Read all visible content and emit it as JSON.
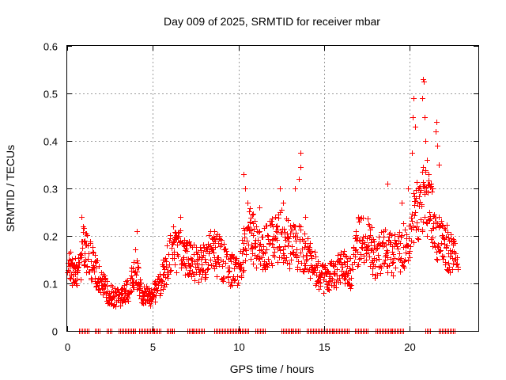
{
  "chart_data": {
    "type": "scatter",
    "title": "Day 009 of 2025, SRMTID for receiver mbar",
    "xlabel": "GPS time / hours",
    "ylabel": "SRMTID / TECUs",
    "xlim": [
      0,
      24
    ],
    "ylim": [
      0,
      0.6
    ],
    "xticks": [
      0,
      5,
      10,
      15,
      20
    ],
    "xtick_labels": [
      "0",
      "5",
      "10",
      "15",
      "20"
    ],
    "yticks": [
      0,
      0.1,
      0.2,
      0.3,
      0.4,
      0.5,
      0.6
    ],
    "ytick_labels": [
      "0",
      "0.1",
      "0.2",
      "0.3",
      "0.4",
      "0.5",
      "0.6"
    ],
    "grid": true,
    "marker": "+",
    "series": [
      {
        "name": "SRMTID",
        "color": "#ff0000",
        "trend": [
          [
            0.0,
            0.14
          ],
          [
            0.4,
            0.12
          ],
          [
            0.8,
            0.15
          ],
          [
            1.0,
            0.18
          ],
          [
            1.3,
            0.15
          ],
          [
            1.7,
            0.12
          ],
          [
            2.0,
            0.1
          ],
          [
            2.4,
            0.08
          ],
          [
            2.8,
            0.07
          ],
          [
            3.2,
            0.07
          ],
          [
            3.6,
            0.09
          ],
          [
            4.0,
            0.14
          ],
          [
            4.3,
            0.08
          ],
          [
            4.8,
            0.07
          ],
          [
            5.2,
            0.09
          ],
          [
            5.6,
            0.12
          ],
          [
            6.0,
            0.16
          ],
          [
            6.5,
            0.17
          ],
          [
            7.0,
            0.15
          ],
          [
            7.5,
            0.14
          ],
          [
            8.0,
            0.15
          ],
          [
            8.5,
            0.17
          ],
          [
            9.0,
            0.15
          ],
          [
            9.5,
            0.13
          ],
          [
            10.0,
            0.12
          ],
          [
            10.3,
            0.17
          ],
          [
            10.6,
            0.22
          ],
          [
            11.0,
            0.18
          ],
          [
            11.5,
            0.17
          ],
          [
            12.0,
            0.19
          ],
          [
            12.5,
            0.2
          ],
          [
            13.0,
            0.18
          ],
          [
            13.5,
            0.18
          ],
          [
            14.0,
            0.16
          ],
          [
            14.5,
            0.13
          ],
          [
            15.0,
            0.11
          ],
          [
            15.5,
            0.12
          ],
          [
            16.0,
            0.14
          ],
          [
            16.5,
            0.12
          ],
          [
            17.0,
            0.19
          ],
          [
            17.5,
            0.2
          ],
          [
            18.0,
            0.15
          ],
          [
            18.5,
            0.17
          ],
          [
            19.0,
            0.16
          ],
          [
            19.5,
            0.17
          ],
          [
            20.0,
            0.2
          ],
          [
            20.3,
            0.25
          ],
          [
            20.6,
            0.26
          ],
          [
            20.9,
            0.28
          ],
          [
            21.2,
            0.25
          ],
          [
            21.6,
            0.19
          ],
          [
            22.0,
            0.18
          ],
          [
            22.4,
            0.17
          ],
          [
            22.8,
            0.13
          ]
        ],
        "spikes": [
          [
            0.85,
            0.24
          ],
          [
            0.9,
            0.22
          ],
          [
            4.05,
            0.21
          ],
          [
            6.2,
            0.22
          ],
          [
            6.6,
            0.24
          ],
          [
            8.6,
            0.21
          ],
          [
            10.3,
            0.33
          ],
          [
            10.4,
            0.3
          ],
          [
            10.5,
            0.27
          ],
          [
            11.2,
            0.26
          ],
          [
            12.4,
            0.3
          ],
          [
            12.6,
            0.27
          ],
          [
            13.3,
            0.3
          ],
          [
            13.5,
            0.32
          ],
          [
            13.6,
            0.345
          ],
          [
            13.6,
            0.375
          ],
          [
            13.9,
            0.24
          ],
          [
            18.7,
            0.31
          ],
          [
            19.5,
            0.27
          ],
          [
            19.9,
            0.3
          ],
          [
            20.1,
            0.375
          ],
          [
            20.15,
            0.45
          ],
          [
            20.2,
            0.49
          ],
          [
            20.3,
            0.43
          ],
          [
            20.5,
            0.3
          ],
          [
            20.7,
            0.49
          ],
          [
            20.75,
            0.53
          ],
          [
            20.8,
            0.525
          ],
          [
            20.85,
            0.45
          ],
          [
            20.9,
            0.4
          ],
          [
            21.0,
            0.36
          ],
          [
            21.1,
            0.33
          ],
          [
            21.3,
            0.3
          ],
          [
            21.5,
            0.42
          ],
          [
            21.55,
            0.44
          ],
          [
            21.6,
            0.39
          ],
          [
            21.7,
            0.35
          ]
        ],
        "zero_intervals": [
          [
            0.7,
            1.3
          ],
          [
            1.6,
            1.9
          ],
          [
            2.3,
            2.6
          ],
          [
            3.0,
            4.0
          ],
          [
            4.2,
            5.5
          ],
          [
            5.8,
            6.3
          ],
          [
            7.0,
            8.0
          ],
          [
            8.6,
            10.6
          ],
          [
            11.0,
            11.6
          ],
          [
            12.5,
            13.6
          ],
          [
            14.0,
            16.5
          ],
          [
            16.8,
            17.6
          ],
          [
            18.0,
            19.7
          ],
          [
            20.9,
            21.2
          ],
          [
            21.7,
            22.6
          ]
        ]
      }
    ]
  }
}
